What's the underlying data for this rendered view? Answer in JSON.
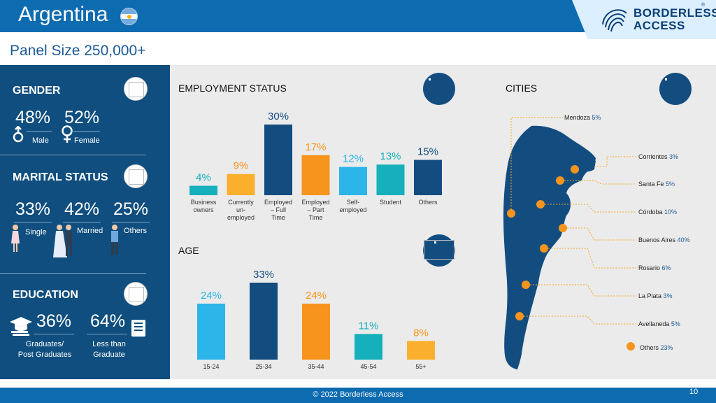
{
  "header": {
    "title": "Argentina",
    "brand_line1": "BORDERLESS",
    "brand_line2": "ACCESS",
    "brand_reg": "®"
  },
  "panel_size": "Panel Size 250,000+",
  "gender": {
    "title": "GENDER",
    "male_pct": "48%",
    "male_label": "Male",
    "female_pct": "52%",
    "female_label": "Female"
  },
  "marital": {
    "title": "MARITAL STATUS",
    "single_pct": "33%",
    "single_label": "Single",
    "married_pct": "42%",
    "married_label": "Married",
    "others_pct": "25%",
    "others_label": "Others"
  },
  "education": {
    "title": "EDUCATION",
    "grad_pct": "36%",
    "grad_label1": "Graduates/",
    "grad_label2": "Post Graduates",
    "less_pct": "64%",
    "less_label1": "Less than",
    "less_label2": "Graduate"
  },
  "colors": {
    "navy": "#134d80",
    "teal": "#15b0bb",
    "orange": "#f7941d",
    "amber": "#fbb02d",
    "sky": "#2bb5e8",
    "panel": "#0f4e7e"
  },
  "chart_data": [
    {
      "type": "bar",
      "title": "EMPLOYMENT STATUS",
      "categories": [
        "Business owners",
        "Currently un-employed",
        "Employed – Full Time",
        "Employed – Part Time",
        "Self-employed",
        "Student",
        "Others"
      ],
      "category_lines": [
        [
          "Business",
          "owners"
        ],
        [
          "Currently",
          "un-",
          "employed"
        ],
        [
          "Employed",
          "– Full",
          "Time"
        ],
        [
          "Employed",
          "– Part",
          "Time"
        ],
        [
          "Self-",
          "employed"
        ],
        [
          "Student"
        ],
        [
          "Others"
        ]
      ],
      "values": [
        4,
        9,
        30,
        17,
        12,
        13,
        15
      ],
      "labels": [
        "4%",
        "9%",
        "30%",
        "17%",
        "12%",
        "13%",
        "15%"
      ],
      "colors": [
        "#15b0bb",
        "#fbb02d",
        "#134d80",
        "#f7941d",
        "#2bb5e8",
        "#15b0bb",
        "#134d80"
      ],
      "label_colors": [
        "#15b0bb",
        "#f7941d",
        "#134d80",
        "#f7941d",
        "#2bb5e8",
        "#15b0bb",
        "#134d80"
      ]
    },
    {
      "type": "bar",
      "title": "AGE",
      "categories": [
        "15-24",
        "25-34",
        "35-44",
        "45-54",
        "55+"
      ],
      "values": [
        24,
        33,
        24,
        11,
        8
      ],
      "labels": [
        "24%",
        "33%",
        "24%",
        "11%",
        "8%"
      ],
      "colors": [
        "#2bb5e8",
        "#134d80",
        "#f7941d",
        "#15b0bb",
        "#fbb02d"
      ],
      "label_colors": [
        "#2bb5e8",
        "#134d80",
        "#f7941d",
        "#15b0bb",
        "#f7941d"
      ]
    }
  ],
  "cities": {
    "title": "CITIES",
    "items": [
      {
        "name": "Mendoza",
        "pct": "5%"
      },
      {
        "name": "Corrientes",
        "pct": "3%"
      },
      {
        "name": "Santa Fe",
        "pct": "5%"
      },
      {
        "name": "Córdoba",
        "pct": "10%"
      },
      {
        "name": "Buenos Aires",
        "pct": "40%"
      },
      {
        "name": "Rosario",
        "pct": "6%"
      },
      {
        "name": "La Plata",
        "pct": "3%"
      },
      {
        "name": "Avellaneda",
        "pct": "5%"
      }
    ],
    "others": {
      "name": "Others",
      "pct": "23%"
    }
  },
  "footer": {
    "text": "© 2022 Borderless Access",
    "page": "10"
  }
}
